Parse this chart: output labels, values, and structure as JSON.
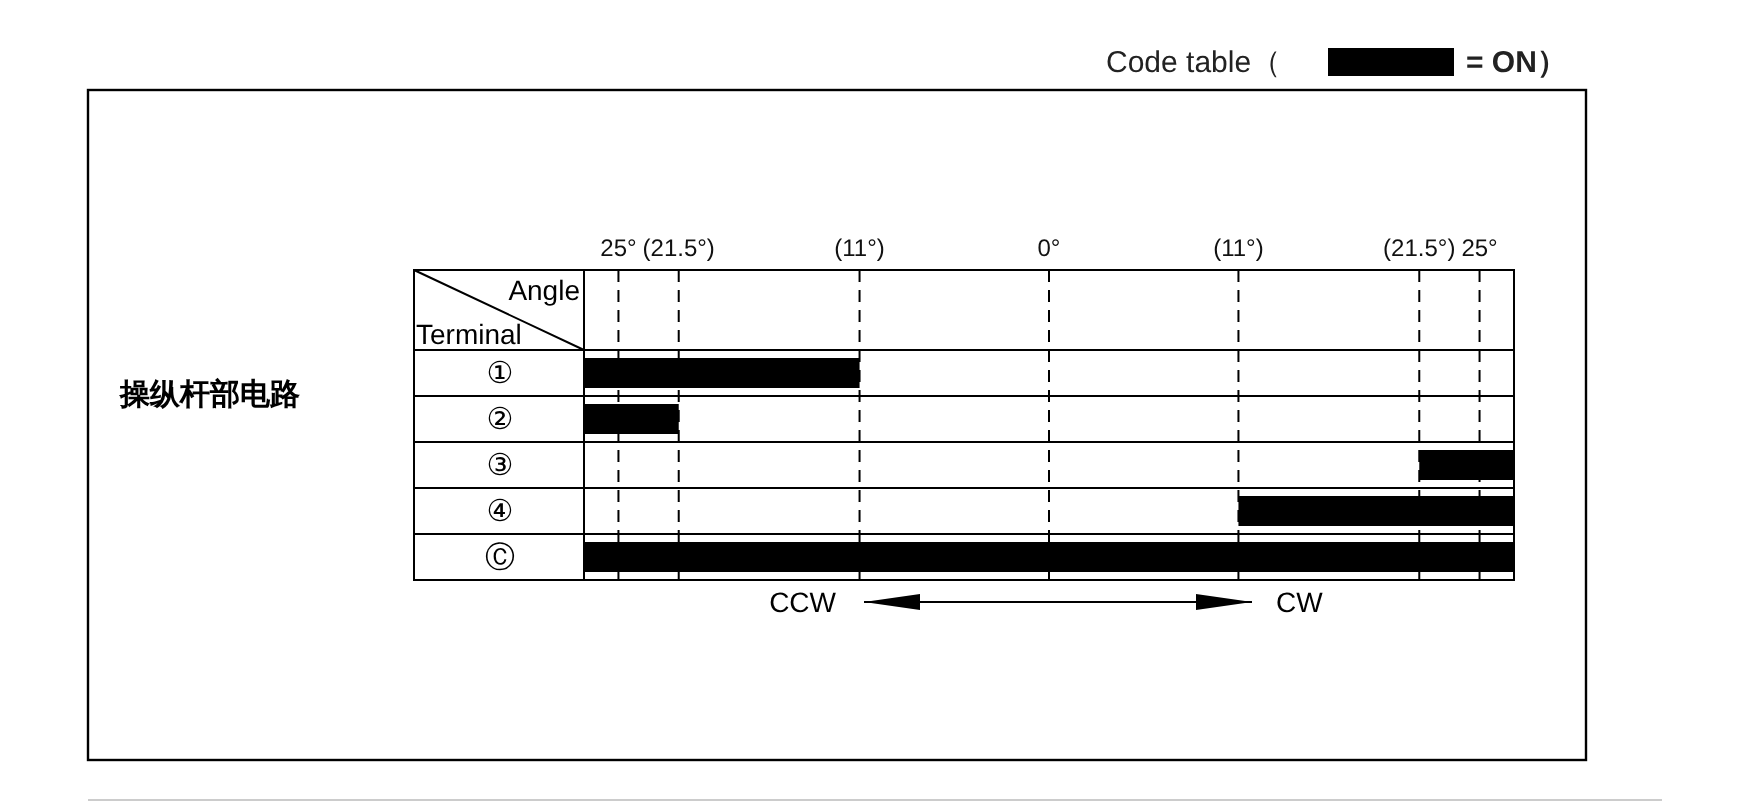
{
  "chart_data": {
    "type": "bar",
    "orientation": "horizontal",
    "legend_title": "Code table（",
    "legend": "top right",
    "xlabel": "Angle",
    "ylabel": "Terminal",
    "categories": [
      "①",
      "②",
      "③",
      "④",
      "Ⓒ"
    ],
    "series": [
      {
        "name": "= ON）",
        "color": "#000000",
        "values": [
          16,
          5.5,
          5.5,
          16,
          54
        ],
        "base": [
          -27,
          -27,
          21.5,
          11,
          -27
        ]
      }
    ],
    "xlim": [
      -27,
      27
    ],
    "xticks": [
      {
        "value": -25,
        "label": "25°"
      },
      {
        "value": -21.5,
        "label": "(21.5°)"
      },
      {
        "value": -11,
        "label": "(11°)"
      },
      {
        "value": 0,
        "label": "0°"
      },
      {
        "value": 11,
        "label": "(11°)"
      },
      {
        "value": 21.5,
        "label": "(21.5°)"
      },
      {
        "value": 25,
        "label": "25°"
      }
    ],
    "grid": true,
    "line_style": "dashed",
    "annotations": [
      "操纵杆部电路",
      "CCW",
      "CW"
    ]
  }
}
